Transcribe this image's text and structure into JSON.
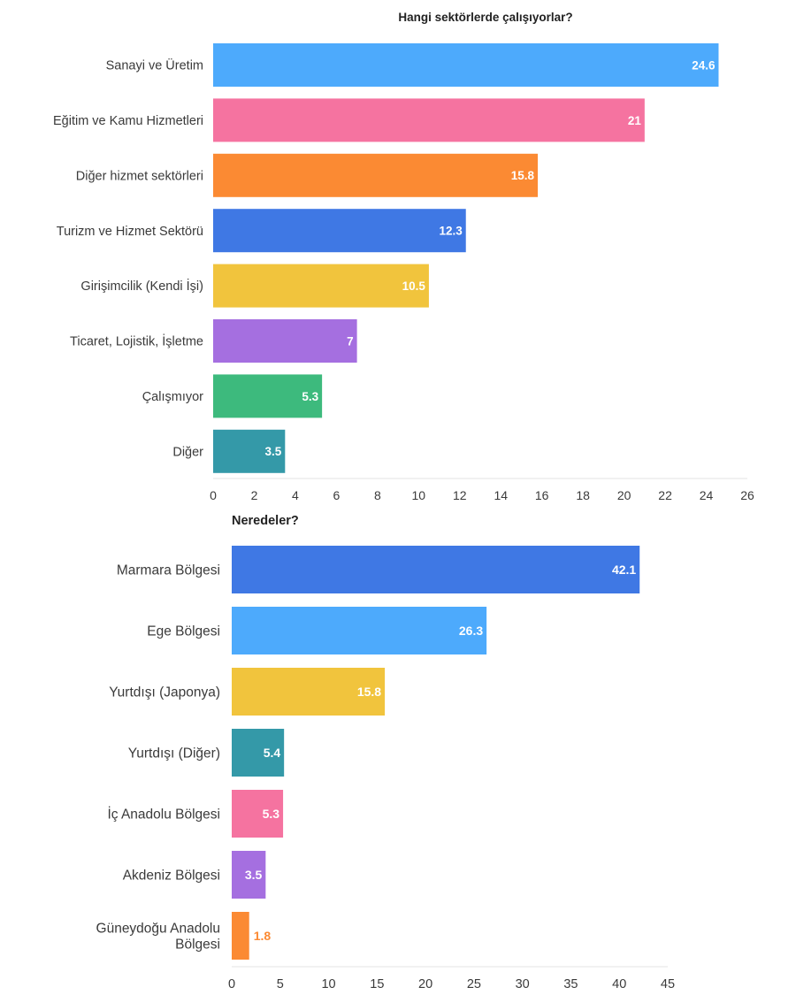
{
  "chart_data": [
    {
      "type": "bar",
      "orientation": "horizontal",
      "title": "Hangi sektörlerde çalışıyorlar?",
      "xlabel": "",
      "ylabel": "",
      "xlim": [
        0,
        26
      ],
      "ticks": [
        "0",
        "2",
        "4",
        "6",
        "8",
        "10",
        "12",
        "14",
        "16",
        "18",
        "20",
        "22",
        "24",
        "26"
      ],
      "tick_values": [
        0,
        2,
        4,
        6,
        8,
        10,
        12,
        14,
        16,
        18,
        20,
        22,
        24,
        26
      ],
      "grid": false,
      "categories": [
        "Sanayi ve Üretim",
        "Eğitim ve Kamu Hizmetleri",
        "Diğer hizmet sektörleri",
        "Turizm ve Hizmet Sektörü",
        "Girişimcilik (Kendi İşi)",
        "Ticaret, Lojistik, İşletme",
        "Çalışmıyor",
        "Diğer"
      ],
      "values": [
        24.6,
        21,
        15.8,
        12.3,
        10.5,
        7,
        5.3,
        3.5
      ],
      "value_labels": [
        "24.6",
        "21",
        "15.8",
        "12.3",
        "10.5",
        "7",
        "5.3",
        "3.5"
      ],
      "colors": [
        "#4daafc",
        "#f573a0",
        "#fb8a33",
        "#3f78e4",
        "#f1c43d",
        "#a56fe0",
        "#3dba7d",
        "#3499a8"
      ]
    },
    {
      "type": "bar",
      "orientation": "horizontal",
      "title": "Neredeler?",
      "xlabel": "",
      "ylabel": "",
      "xlim": [
        0,
        45
      ],
      "ticks": [
        "0",
        "5",
        "10",
        "15",
        "20",
        "25",
        "30",
        "35",
        "40",
        "45"
      ],
      "tick_values": [
        0,
        5,
        10,
        15,
        20,
        25,
        30,
        35,
        40,
        45
      ],
      "grid": false,
      "categories": [
        [
          "Marmara Bölgesi"
        ],
        [
          "Ege Bölgesi"
        ],
        [
          "Yurtdışı (Japonya)"
        ],
        [
          "Yurtdışı (Diğer)"
        ],
        [
          "İç Anadolu Bölgesi"
        ],
        [
          "Akdeniz Bölgesi"
        ],
        [
          "Güneydoğu Anadolu",
          "Bölgesi"
        ]
      ],
      "values": [
        42.1,
        26.3,
        15.8,
        5.4,
        5.3,
        3.5,
        1.8
      ],
      "value_labels": [
        "42.1",
        "26.3",
        "15.8",
        "5.4",
        "5.3",
        "3.5",
        "1.8"
      ],
      "colors": [
        "#3f78e4",
        "#4daafc",
        "#f1c43d",
        "#3499a8",
        "#f573a0",
        "#a56fe0",
        "#fb8a33"
      ]
    }
  ]
}
